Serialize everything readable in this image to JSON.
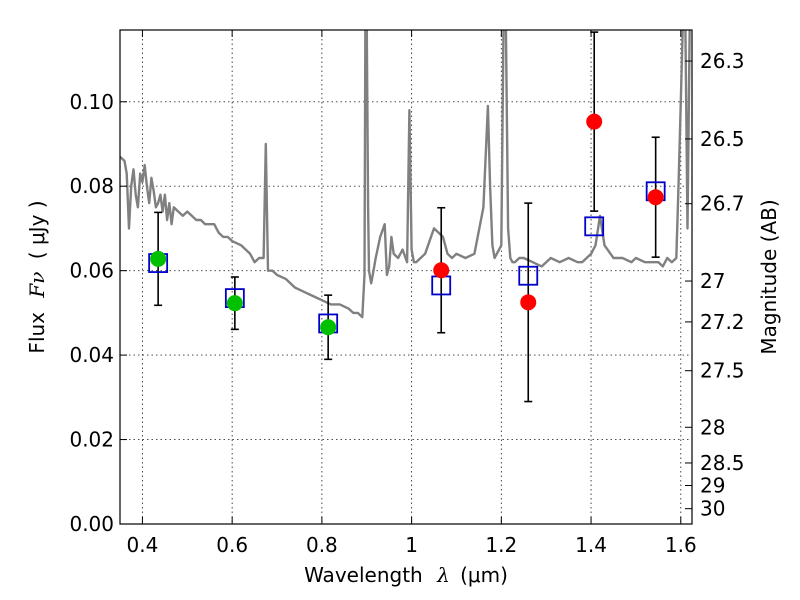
{
  "chart_data": {
    "type": "scatter",
    "xlabel_prefix": "Wavelength",
    "xlabel_symbol": "λ",
    "xlabel_unit": "(μm)",
    "ylabel_prefix": "Flux",
    "ylabel_symbol": "Fν",
    "ylabel_unit": "( μJy )",
    "y2label": "Magnitude (AB)",
    "xlim": [
      0.35,
      1.625
    ],
    "ylim": [
      0.0,
      0.117
    ],
    "grid": true,
    "x_ticks": [
      {
        "v": 0.4,
        "label": "0.4"
      },
      {
        "v": 0.6,
        "label": "0.6"
      },
      {
        "v": 0.8,
        "label": "0.8"
      },
      {
        "v": 1.0,
        "label": "1"
      },
      {
        "v": 1.2,
        "label": "1.2"
      },
      {
        "v": 1.4,
        "label": "1.4"
      },
      {
        "v": 1.6,
        "label": "1.6"
      }
    ],
    "y_ticks": [
      {
        "v": 0.0,
        "label": "0.00"
      },
      {
        "v": 0.02,
        "label": "0.02"
      },
      {
        "v": 0.04,
        "label": "0.04"
      },
      {
        "v": 0.06,
        "label": "0.06"
      },
      {
        "v": 0.08,
        "label": "0.08"
      },
      {
        "v": 0.1,
        "label": "0.10"
      }
    ],
    "y2_ticks": [
      {
        "mag": 26.3,
        "label": "26.3"
      },
      {
        "mag": 26.5,
        "label": "26.5"
      },
      {
        "mag": 26.7,
        "label": "26.7"
      },
      {
        "mag": 27.0,
        "label": "27"
      },
      {
        "mag": 27.2,
        "label": "27.2"
      },
      {
        "mag": 27.5,
        "label": "27.5"
      },
      {
        "mag": 28.0,
        "label": "28"
      },
      {
        "mag": 28.5,
        "label": "28.5"
      },
      {
        "mag": 29.0,
        "label": "29"
      },
      {
        "mag": 30.0,
        "label": "30"
      }
    ],
    "colors": {
      "green": "#00c000",
      "red": "#ff0000",
      "model_box": "#0000cc",
      "spectrum": "#808080",
      "errorbar": "#000000"
    },
    "series": [
      {
        "name": "green points",
        "color": "green",
        "points": [
          {
            "x": 0.435,
            "y": 0.0628,
            "err": 0.011
          },
          {
            "x": 0.606,
            "y": 0.0523,
            "err": 0.0062
          },
          {
            "x": 0.814,
            "y": 0.0466,
            "err": 0.0076
          }
        ]
      },
      {
        "name": "red points",
        "color": "red",
        "points": [
          {
            "x": 1.066,
            "y": 0.0601,
            "err": 0.0148
          },
          {
            "x": 1.26,
            "y": 0.0525,
            "err": 0.0235
          },
          {
            "x": 1.407,
            "y": 0.0953,
            "err": 0.0212
          },
          {
            "x": 1.544,
            "y": 0.0774,
            "err": 0.0142
          }
        ]
      },
      {
        "name": "model box points",
        "color": "model_box",
        "points": [
          {
            "x": 0.435,
            "y": 0.0618
          },
          {
            "x": 0.606,
            "y": 0.0535
          },
          {
            "x": 0.814,
            "y": 0.0475
          },
          {
            "x": 1.066,
            "y": 0.0565
          },
          {
            "x": 1.26,
            "y": 0.0588
          },
          {
            "x": 1.407,
            "y": 0.0705
          },
          {
            "x": 1.544,
            "y": 0.0788
          }
        ]
      }
    ],
    "spectrum": {
      "name": "model spectrum",
      "x": [
        0.35,
        0.36,
        0.365,
        0.37,
        0.375,
        0.38,
        0.385,
        0.39,
        0.395,
        0.4,
        0.405,
        0.41,
        0.415,
        0.42,
        0.425,
        0.43,
        0.435,
        0.44,
        0.445,
        0.45,
        0.455,
        0.46,
        0.465,
        0.47,
        0.48,
        0.49,
        0.5,
        0.51,
        0.52,
        0.53,
        0.54,
        0.55,
        0.56,
        0.57,
        0.58,
        0.59,
        0.6,
        0.62,
        0.64,
        0.65,
        0.66,
        0.67,
        0.675,
        0.68,
        0.685,
        0.69,
        0.7,
        0.72,
        0.74,
        0.76,
        0.78,
        0.8,
        0.82,
        0.84,
        0.86,
        0.87,
        0.88,
        0.89,
        0.895,
        0.897,
        0.9,
        0.903,
        0.905,
        0.91,
        0.915,
        0.92,
        0.93,
        0.94,
        0.945,
        0.95,
        0.955,
        0.96,
        0.97,
        0.98,
        0.99,
        0.995,
        1.0,
        1.005,
        1.01,
        1.03,
        1.05,
        1.07,
        1.08,
        1.09,
        1.1,
        1.12,
        1.14,
        1.16,
        1.17,
        1.175,
        1.18,
        1.185,
        1.19,
        1.2,
        1.205,
        1.21,
        1.215,
        1.22,
        1.225,
        1.23,
        1.24,
        1.25,
        1.27,
        1.29,
        1.3,
        1.31,
        1.33,
        1.35,
        1.37,
        1.38,
        1.39,
        1.4,
        1.41,
        1.42,
        1.43,
        1.45,
        1.47,
        1.49,
        1.5,
        1.52,
        1.54,
        1.55,
        1.56,
        1.57,
        1.58,
        1.59,
        1.595,
        1.6,
        1.605,
        1.61,
        1.615,
        1.62
      ],
      "y": [
        0.087,
        0.086,
        0.083,
        0.07,
        0.08,
        0.084,
        0.078,
        0.075,
        0.083,
        0.081,
        0.085,
        0.08,
        0.076,
        0.082,
        0.079,
        0.075,
        0.076,
        0.078,
        0.074,
        0.078,
        0.072,
        0.076,
        0.071,
        0.075,
        0.074,
        0.073,
        0.074,
        0.073,
        0.072,
        0.072,
        0.071,
        0.071,
        0.071,
        0.069,
        0.068,
        0.068,
        0.067,
        0.066,
        0.064,
        0.062,
        0.063,
        0.063,
        0.09,
        0.06,
        0.06,
        0.06,
        0.059,
        0.058,
        0.056,
        0.055,
        0.054,
        0.053,
        0.052,
        0.052,
        0.051,
        0.05,
        0.05,
        0.049,
        0.059,
        0.12,
        0.12,
        0.075,
        0.06,
        0.057,
        0.06,
        0.063,
        0.068,
        0.071,
        0.059,
        0.061,
        0.068,
        0.064,
        0.063,
        0.065,
        0.062,
        0.098,
        0.065,
        0.062,
        0.062,
        0.064,
        0.07,
        0.068,
        0.064,
        0.063,
        0.064,
        0.063,
        0.064,
        0.075,
        0.099,
        0.08,
        0.066,
        0.063,
        0.064,
        0.066,
        0.12,
        0.12,
        0.07,
        0.063,
        0.062,
        0.062,
        0.063,
        0.063,
        0.062,
        0.061,
        0.062,
        0.063,
        0.062,
        0.063,
        0.062,
        0.062,
        0.063,
        0.064,
        0.066,
        0.073,
        0.066,
        0.063,
        0.063,
        0.062,
        0.063,
        0.062,
        0.062,
        0.062,
        0.061,
        0.063,
        0.062,
        0.063,
        0.08,
        0.1,
        0.12,
        0.12,
        0.07,
        0.12
      ]
    }
  }
}
